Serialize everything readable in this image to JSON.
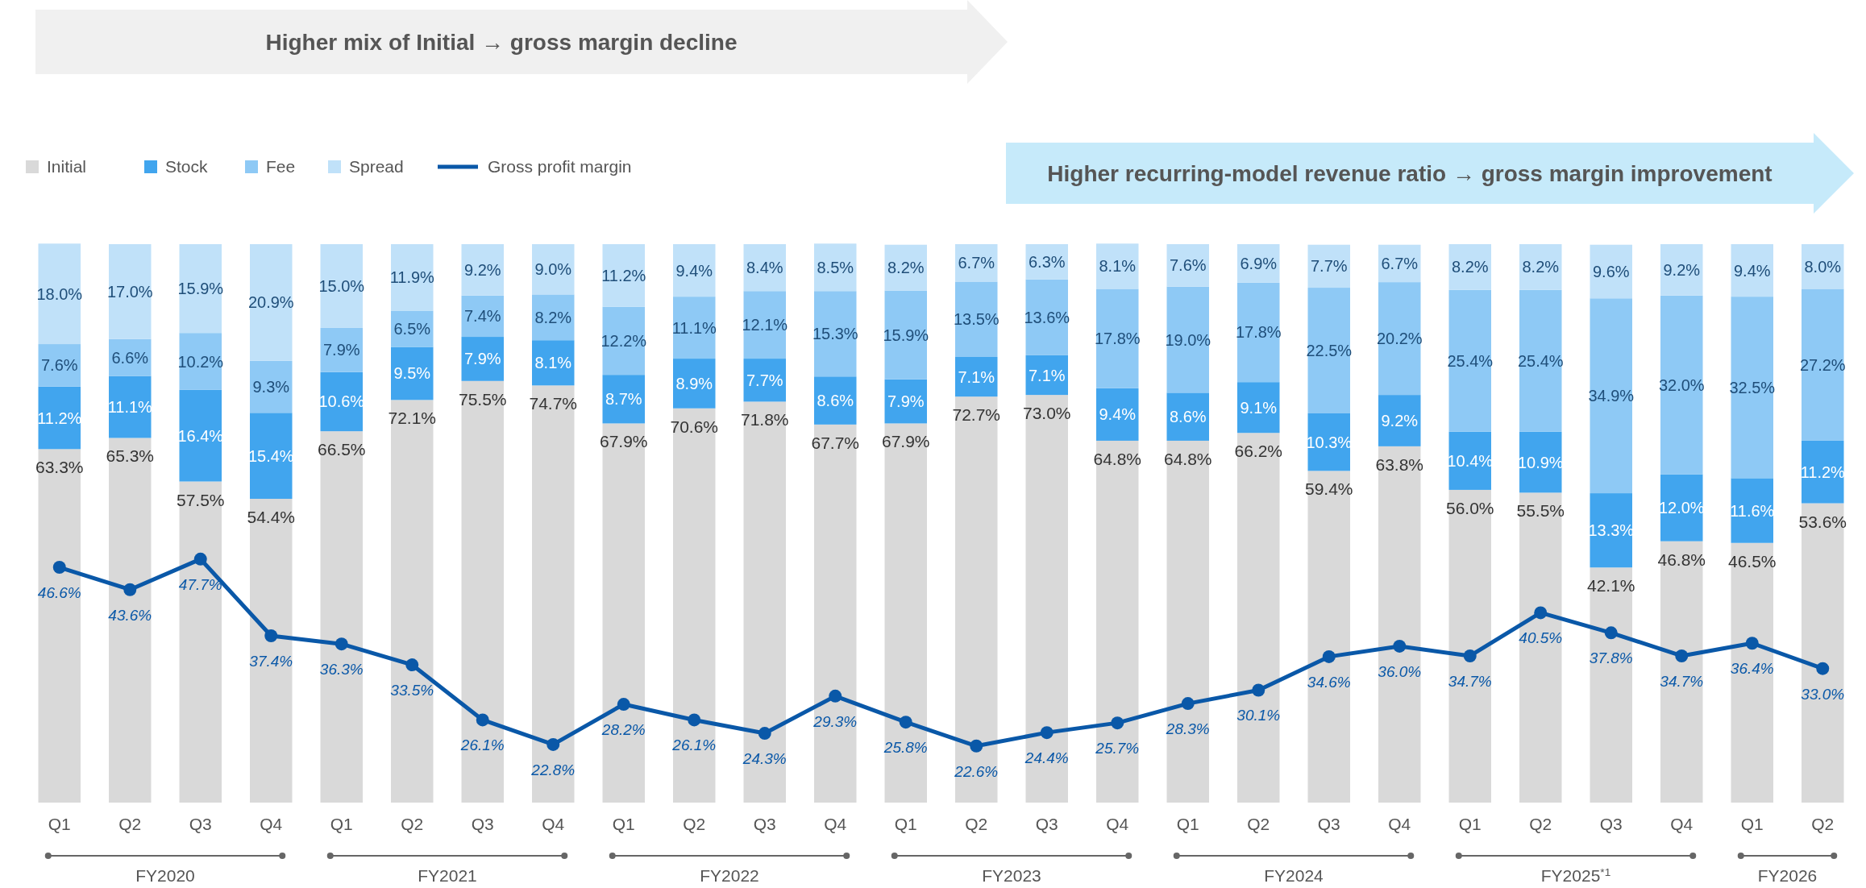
{
  "chart_data": {
    "type": "bar",
    "stacked": true,
    "categories": [
      "Q1",
      "Q2",
      "Q3",
      "Q4",
      "Q1",
      "Q2",
      "Q3",
      "Q4",
      "Q1",
      "Q2",
      "Q3",
      "Q4",
      "Q1",
      "Q2",
      "Q3",
      "Q4",
      "Q1",
      "Q2",
      "Q3",
      "Q4",
      "Q1",
      "Q2",
      "Q3",
      "Q4",
      "Q1",
      "Q2"
    ],
    "series": [
      {
        "name": "Initial",
        "color": "#d9d9d9",
        "values": [
          63.3,
          65.3,
          57.5,
          54.4,
          66.5,
          72.1,
          75.5,
          74.7,
          67.9,
          70.6,
          71.8,
          67.7,
          67.9,
          72.7,
          73.0,
          64.8,
          64.8,
          66.2,
          59.4,
          63.8,
          56.0,
          55.5,
          42.1,
          46.8,
          46.5,
          53.6
        ],
        "value_labels": [
          "63.3%",
          "65.3%",
          "57.5%",
          "54.4%",
          "66.5%",
          "72.1%",
          "75.5%",
          "74.7%",
          "67.9%",
          "70.6%",
          "71.8%",
          "67.7%",
          "67.9%",
          "72.7%",
          "73.0%",
          "64.8%",
          "64.8%",
          "66.2%",
          "59.4%",
          "63.8%",
          "56.0%",
          "55.5%",
          "42.1%",
          "46.8%",
          "46.5%",
          "53.6%"
        ]
      },
      {
        "name": "Stock",
        "color": "#41a5ee",
        "values": [
          11.2,
          11.1,
          16.4,
          15.4,
          10.6,
          9.5,
          7.9,
          8.1,
          8.7,
          8.9,
          7.7,
          8.6,
          7.9,
          7.1,
          7.1,
          9.4,
          8.6,
          9.1,
          10.3,
          9.2,
          10.4,
          10.9,
          13.3,
          12.0,
          11.6,
          11.2
        ],
        "value_labels": [
          "11.2%",
          "11.1%",
          "16.4%",
          "15.4%",
          "10.6%",
          "9.5%",
          "7.9%",
          "8.1%",
          "8.7%",
          "8.9%",
          "7.7%",
          "8.6%",
          "7.9%",
          "7.1%",
          "7.1%",
          "9.4%",
          "8.6%",
          "9.1%",
          "10.3%",
          "9.2%",
          "10.4%",
          "10.9%",
          "13.3%",
          "12.0%",
          "11.6%",
          "11.2%"
        ]
      },
      {
        "name": "Fee",
        "color": "#8ec9f5",
        "values": [
          7.6,
          6.6,
          10.2,
          9.3,
          7.9,
          6.5,
          7.4,
          8.2,
          12.2,
          11.1,
          12.1,
          15.3,
          15.9,
          13.5,
          13.6,
          17.8,
          19.0,
          17.8,
          22.5,
          20.2,
          25.4,
          25.4,
          34.9,
          32.0,
          32.5,
          27.2
        ],
        "value_labels": [
          "7.6%",
          "6.6%",
          "10.2%",
          "9.3%",
          "7.9%",
          "6.5%",
          "7.4%",
          "8.2%",
          "12.2%",
          "11.1%",
          "12.1%",
          "15.3%",
          "15.9%",
          "13.5%",
          "13.6%",
          "17.8%",
          "19.0%",
          "17.8%",
          "22.5%",
          "20.2%",
          "25.4%",
          "25.4%",
          "34.9%",
          "32.0%",
          "32.5%",
          "27.2%"
        ]
      },
      {
        "name": "Spread",
        "color": "#c0e1f9",
        "values": [
          18.0,
          17.0,
          15.9,
          20.9,
          15.0,
          11.9,
          9.2,
          9.0,
          11.2,
          9.4,
          8.4,
          8.5,
          8.2,
          6.7,
          6.3,
          8.1,
          7.6,
          6.9,
          7.7,
          6.7,
          8.2,
          8.2,
          9.6,
          9.2,
          9.4,
          8.0
        ],
        "value_labels": [
          "18.0%",
          "17.0%",
          "15.9%",
          "20.9%",
          "15.0%",
          "11.9%",
          "9.2%",
          "9.0%",
          "11.2%",
          "9.4%",
          "8.4%",
          "8.5%",
          "8.2%",
          "6.7%",
          "6.3%",
          "8.1%",
          "7.6%",
          "6.9%",
          "7.7%",
          "6.7%",
          "8.2%",
          "8.2%",
          "9.6%",
          "9.2%",
          "9.4%",
          "8.0%"
        ]
      },
      {
        "name": "Gross profit margin",
        "type": "line",
        "axis": "y2",
        "color": "#0a58a8",
        "values": [
          46.6,
          43.6,
          47.7,
          37.4,
          36.3,
          33.5,
          26.1,
          22.8,
          28.2,
          26.1,
          24.3,
          29.3,
          25.8,
          22.6,
          24.4,
          25.7,
          28.3,
          30.1,
          34.6,
          36.0,
          34.7,
          40.5,
          37.8,
          34.7,
          36.4,
          33.0
        ],
        "value_labels": [
          "46.6%",
          "43.6%",
          "47.7%",
          "37.4%",
          "36.3%",
          "33.5%",
          "26.1%",
          "22.8%",
          "28.2%",
          "26.1%",
          "24.3%",
          "29.3%",
          "25.8%",
          "22.6%",
          "24.4%",
          "25.7%",
          "28.3%",
          "30.1%",
          "34.6%",
          "36.0%",
          "34.7%",
          "40.5%",
          "37.8%",
          "34.7%",
          "36.4%",
          "33.0%"
        ]
      }
    ],
    "ylim": [
      0,
      100
    ],
    "y2lim": [
      15,
      90
    ],
    "tick_labels": "x",
    "legend": "top left",
    "marker": "circle",
    "annotations": [
      "Higher mix of Initial → gross margin decline",
      "Higher recurring-model revenue ratio → gross margin improvement",
      "FY2020",
      "FY2021",
      "FY2022",
      "FY2023",
      "FY2024",
      "FY2025$^{*1}$",
      "FY2026"
    ]
  }
}
